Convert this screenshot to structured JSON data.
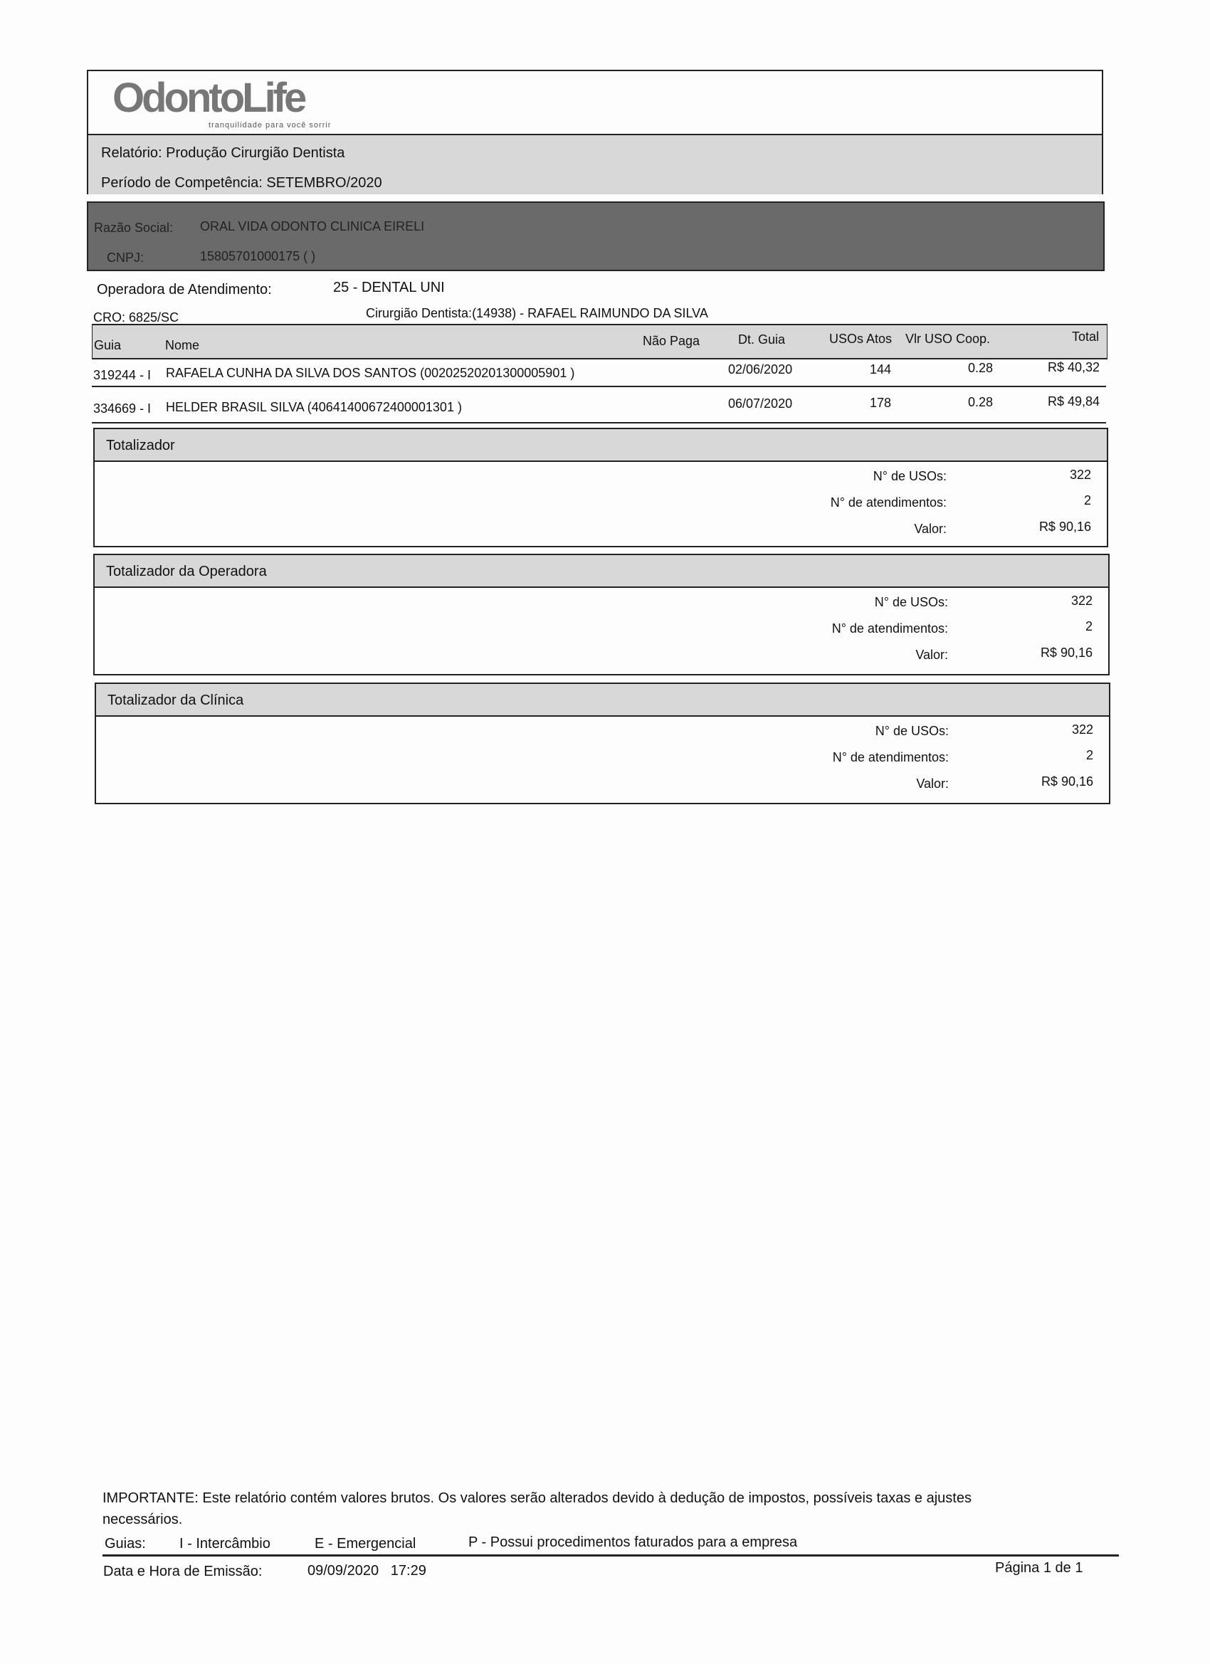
{
  "header": {
    "logo_text": "OdontoLife",
    "logo_tagline": "tranquilidade para você sorrir",
    "report_label": "Relatório:",
    "report_value": "Produção Cirurgião Dentista",
    "period_label": "Período de Competência:",
    "period_value": "SETEMBRO/2020"
  },
  "clinic": {
    "razao_label": "Razão Social:",
    "razao_value": "ORAL VIDA ODONTO CLINICA EIRELI",
    "cnpj_label": "CNPJ:",
    "cnpj_value": "15805701000175 (  )"
  },
  "operadora": {
    "label": "Operadora de Atendimento:",
    "value": "25 - DENTAL UNI"
  },
  "cro": {
    "label": "CRO:",
    "value": "6825/SC"
  },
  "dentist": {
    "label": "Cirurgião Dentista:",
    "value": "(14938) - RAFAEL RAIMUNDO DA SILVA"
  },
  "table": {
    "columns": [
      "Guia",
      "Nome",
      "Não Paga",
      "Dt. Guia",
      "USOs Atos",
      "Vlr USO Coop.",
      "Total"
    ],
    "rows": [
      {
        "guia": "319244 - I",
        "nome": "RAFAELA CUNHA DA SILVA DOS SANTOS (00202520201300005901 )",
        "nao_paga": "",
        "dt_guia": "02/06/2020",
        "usos": "144",
        "vlr": "0.28",
        "total": "R$ 40,32"
      },
      {
        "guia": "334669 - I",
        "nome": "HELDER BRASIL SILVA (40641400672400001301 )",
        "nao_paga": "",
        "dt_guia": "06/07/2020",
        "usos": "178",
        "vlr": "0.28",
        "total": "R$ 49,84"
      }
    ]
  },
  "totals": [
    {
      "title": "Totalizador",
      "usos_label": "N° de USOs:",
      "usos": "322",
      "atend_label": "N° de atendimentos:",
      "atend": "2",
      "valor_label": "Valor:",
      "valor": "R$ 90,16"
    },
    {
      "title": "Totalizador da Operadora",
      "usos_label": "N° de USOs:",
      "usos": "322",
      "atend_label": "N° de atendimentos:",
      "atend": "2",
      "valor_label": "Valor:",
      "valor": "R$ 90,16"
    },
    {
      "title": "Totalizador da Clínica",
      "usos_label": "N° de USOs:",
      "usos": "322",
      "atend_label": "N° de atendimentos:",
      "atend": "2",
      "valor_label": "Valor:",
      "valor": "R$ 90,16"
    }
  ],
  "footer": {
    "important_line1": "IMPORTANTE: Este relatório contém valores brutos. Os valores serão alterados devido à dedução de impostos, possíveis taxas e ajustes",
    "important_line2": "necessários.",
    "guias_label": "Guias:",
    "legend_i": "I - Intercâmbio",
    "legend_e": "E - Emergencial",
    "legend_p": "P - Possui procedimentos faturados para a empresa",
    "emission_label": "Data e Hora de Emissão:",
    "emission_value": "09/09/2020   17:29",
    "page": "Página 1 de 1"
  }
}
